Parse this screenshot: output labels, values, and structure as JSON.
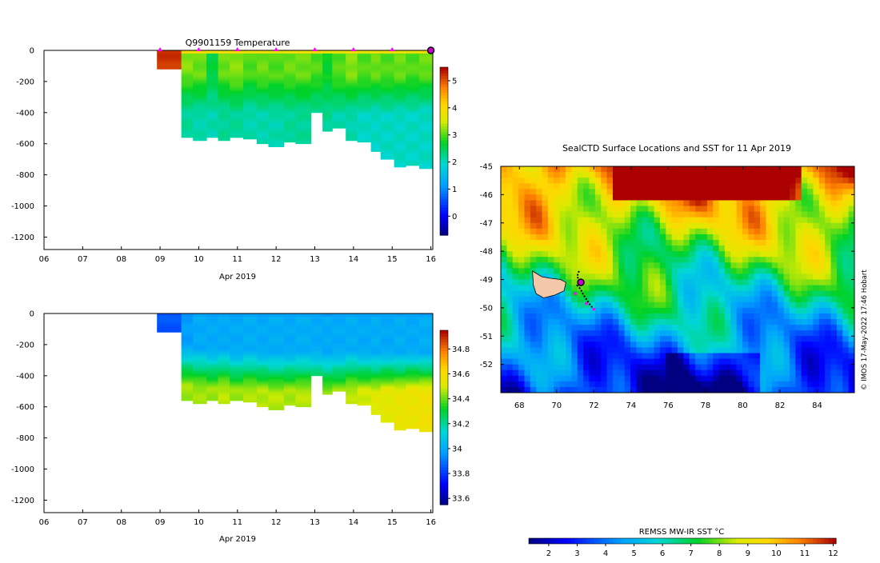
{
  "chart_data": [
    {
      "type": "heatmap",
      "title": "Q9901159  Temperature",
      "xlabel": "Apr 2019",
      "x_ticks": [
        "06",
        "07",
        "08",
        "09",
        "10",
        "11",
        "12",
        "13",
        "14",
        "15",
        "16"
      ],
      "xlim": [
        6,
        16.05
      ],
      "y_ticks": [
        0,
        -200,
        -400,
        -600,
        -800,
        -1000,
        -1200
      ],
      "ylim": [
        -1280,
        0
      ],
      "colorbar": {
        "ticks": [
          0,
          1,
          2,
          3,
          4,
          5
        ],
        "range": [
          -0.7,
          5.5
        ]
      },
      "profile_markers": [
        9,
        10,
        11,
        12,
        13,
        14,
        15,
        16
      ],
      "profiles": [
        {
          "t0": 8.92,
          "t1": 9.55,
          "surface": 5.2,
          "mixed": 5.2,
          "mld": 120,
          "deep": 5.2,
          "depth": 120
        },
        {
          "t0": 9.55,
          "t1": 9.85,
          "surface": 4.0,
          "mixed": 3.2,
          "mld": 130,
          "deep": 2.2,
          "depth": 560
        },
        {
          "t0": 9.85,
          "t1": 10.2,
          "surface": 3.9,
          "mixed": 3.1,
          "mld": 150,
          "deep": 2.1,
          "depth": 580
        },
        {
          "t0": 10.2,
          "t1": 10.5,
          "surface": 3.8,
          "mixed": 2.6,
          "mld": 160,
          "deep": 2.1,
          "depth": 560
        },
        {
          "t0": 10.5,
          "t1": 10.8,
          "surface": 3.9,
          "mixed": 3.1,
          "mld": 140,
          "deep": 2.2,
          "depth": 580
        },
        {
          "t0": 10.8,
          "t1": 11.15,
          "surface": 4.0,
          "mixed": 3.2,
          "mld": 150,
          "deep": 2.2,
          "depth": 560
        },
        {
          "t0": 11.15,
          "t1": 11.5,
          "surface": 3.8,
          "mixed": 3.0,
          "mld": 140,
          "deep": 2.1,
          "depth": 570
        },
        {
          "t0": 11.5,
          "t1": 11.8,
          "surface": 3.9,
          "mixed": 3.1,
          "mld": 150,
          "deep": 2.1,
          "depth": 600
        },
        {
          "t0": 11.8,
          "t1": 12.2,
          "surface": 3.7,
          "mixed": 3.0,
          "mld": 160,
          "deep": 2.1,
          "depth": 620
        },
        {
          "t0": 12.2,
          "t1": 12.5,
          "surface": 3.8,
          "mixed": 3.1,
          "mld": 140,
          "deep": 2.2,
          "depth": 590
        },
        {
          "t0": 12.5,
          "t1": 12.9,
          "surface": 3.9,
          "mixed": 3.1,
          "mld": 150,
          "deep": 2.2,
          "depth": 600
        },
        {
          "t0": 12.9,
          "t1": 13.2,
          "surface": 4.0,
          "mixed": 3.0,
          "mld": 140,
          "deep": 2.2,
          "depth": 400
        },
        {
          "t0": 13.2,
          "t1": 13.45,
          "surface": 3.8,
          "mixed": 2.7,
          "mld": 180,
          "deep": 2.2,
          "depth": 520
        },
        {
          "t0": 13.45,
          "t1": 13.8,
          "surface": 3.7,
          "mixed": 3.0,
          "mld": 160,
          "deep": 2.1,
          "depth": 500
        },
        {
          "t0": 13.8,
          "t1": 14.1,
          "surface": 3.9,
          "mixed": 3.2,
          "mld": 150,
          "deep": 2.1,
          "depth": 580
        },
        {
          "t0": 14.1,
          "t1": 14.45,
          "surface": 3.7,
          "mixed": 3.0,
          "mld": 160,
          "deep": 2.0,
          "depth": 590
        },
        {
          "t0": 14.45,
          "t1": 14.7,
          "surface": 3.8,
          "mixed": 3.1,
          "mld": 150,
          "deep": 2.0,
          "depth": 650
        },
        {
          "t0": 14.7,
          "t1": 15.05,
          "surface": 3.9,
          "mixed": 3.0,
          "mld": 160,
          "deep": 2.0,
          "depth": 700
        },
        {
          "t0": 15.05,
          "t1": 15.35,
          "surface": 3.8,
          "mixed": 3.1,
          "mld": 150,
          "deep": 2.0,
          "depth": 750
        },
        {
          "t0": 15.35,
          "t1": 15.7,
          "surface": 3.7,
          "mixed": 3.0,
          "mld": 150,
          "deep": 2.0,
          "depth": 740
        },
        {
          "t0": 15.7,
          "t1": 16.05,
          "surface": 3.9,
          "mixed": 3.1,
          "mld": 140,
          "deep": 2.0,
          "depth": 760
        }
      ]
    },
    {
      "type": "heatmap",
      "title": "",
      "xlabel": "Apr 2019",
      "x_ticks": [
        "06",
        "07",
        "08",
        "09",
        "10",
        "11",
        "12",
        "13",
        "14",
        "15",
        "16"
      ],
      "xlim": [
        6,
        16.05
      ],
      "y_ticks": [
        0,
        -200,
        -400,
        -600,
        -800,
        -1000,
        -1200
      ],
      "ylim": [
        -1280,
        0
      ],
      "colorbar": {
        "ticks": [
          33.6,
          33.8,
          34,
          34.2,
          34.4,
          34.6,
          34.8
        ],
        "labels": [
          "33.6",
          "33.8",
          "34",
          "34.2",
          "34.4",
          "34.6",
          "34.8"
        ],
        "range": [
          33.55,
          34.95
        ]
      },
      "profiles": [
        {
          "t0": 8.92,
          "t1": 9.55,
          "surface": 33.85,
          "mixed": 33.85,
          "mld": 120,
          "deep": 33.85,
          "depth": 120
        },
        {
          "t0": 9.55,
          "t1": 9.85,
          "surface": 33.95,
          "mixed": 33.97,
          "mld": 200,
          "deep": 34.45,
          "depth": 560
        },
        {
          "t0": 9.85,
          "t1": 10.2,
          "surface": 33.98,
          "mixed": 34.0,
          "mld": 220,
          "deep": 34.45,
          "depth": 580
        },
        {
          "t0": 10.2,
          "t1": 10.5,
          "surface": 33.97,
          "mixed": 34.0,
          "mld": 230,
          "deep": 34.45,
          "depth": 560
        },
        {
          "t0": 10.5,
          "t1": 10.8,
          "surface": 33.98,
          "mixed": 34.0,
          "mld": 220,
          "deep": 34.47,
          "depth": 580
        },
        {
          "t0": 10.8,
          "t1": 11.15,
          "surface": 33.97,
          "mixed": 34.0,
          "mld": 240,
          "deep": 34.45,
          "depth": 560
        },
        {
          "t0": 11.15,
          "t1": 11.5,
          "surface": 33.98,
          "mixed": 34.01,
          "mld": 230,
          "deep": 34.46,
          "depth": 570
        },
        {
          "t0": 11.5,
          "t1": 11.8,
          "surface": 33.97,
          "mixed": 34.0,
          "mld": 240,
          "deep": 34.47,
          "depth": 600
        },
        {
          "t0": 11.8,
          "t1": 12.2,
          "surface": 33.98,
          "mixed": 34.01,
          "mld": 250,
          "deep": 34.47,
          "depth": 620
        },
        {
          "t0": 12.2,
          "t1": 12.5,
          "surface": 33.97,
          "mixed": 34.0,
          "mld": 240,
          "deep": 34.46,
          "depth": 590
        },
        {
          "t0": 12.5,
          "t1": 12.9,
          "surface": 33.98,
          "mixed": 34.01,
          "mld": 240,
          "deep": 34.47,
          "depth": 600
        },
        {
          "t0": 12.9,
          "t1": 13.2,
          "surface": 33.97,
          "mixed": 34.0,
          "mld": 230,
          "deep": 34.4,
          "depth": 400
        },
        {
          "t0": 13.2,
          "t1": 13.45,
          "surface": 33.96,
          "mixed": 34.0,
          "mld": 250,
          "deep": 34.45,
          "depth": 520
        },
        {
          "t0": 13.45,
          "t1": 13.8,
          "surface": 33.97,
          "mixed": 34.0,
          "mld": 240,
          "deep": 34.45,
          "depth": 500
        },
        {
          "t0": 13.8,
          "t1": 14.1,
          "surface": 33.98,
          "mixed": 34.01,
          "mld": 230,
          "deep": 34.47,
          "depth": 580
        },
        {
          "t0": 14.1,
          "t1": 14.45,
          "surface": 33.97,
          "mixed": 34.0,
          "mld": 240,
          "deep": 34.5,
          "depth": 590
        },
        {
          "t0": 14.45,
          "t1": 14.7,
          "surface": 33.98,
          "mixed": 34.01,
          "mld": 250,
          "deep": 34.52,
          "depth": 650
        },
        {
          "t0": 14.7,
          "t1": 15.05,
          "surface": 33.97,
          "mixed": 34.0,
          "mld": 240,
          "deep": 34.53,
          "depth": 700
        },
        {
          "t0": 15.05,
          "t1": 15.35,
          "surface": 33.98,
          "mixed": 34.01,
          "mld": 250,
          "deep": 34.55,
          "depth": 750
        },
        {
          "t0": 15.35,
          "t1": 15.7,
          "surface": 33.97,
          "mixed": 34.0,
          "mld": 240,
          "deep": 34.56,
          "depth": 740
        },
        {
          "t0": 15.7,
          "t1": 16.05,
          "surface": 33.98,
          "mixed": 34.01,
          "mld": 250,
          "deep": 34.58,
          "depth": 760
        }
      ]
    },
    {
      "type": "heatmap",
      "title": "SealCTD Surface Locations and SST for 11 Apr 2019",
      "xlabel": "",
      "ylabel": "",
      "x_ticks": [
        68,
        70,
        72,
        74,
        76,
        78,
        80,
        82,
        84
      ],
      "xlim": [
        67,
        86
      ],
      "y_ticks": [
        -45,
        -46,
        -47,
        -48,
        -49,
        -50,
        -51,
        -52
      ],
      "ylim": [
        -53,
        -45
      ],
      "colorbar": {
        "label": "REMSS MW-IR SST °C",
        "ticks": [
          2,
          3,
          4,
          5,
          6,
          7,
          8,
          9,
          10,
          11,
          12
        ],
        "range": [
          1.3,
          12.1
        ]
      },
      "credit": "© IMOS 17-May-2022 17:46 Hobart",
      "track": [
        [
          71.2,
          -48.7
        ],
        [
          71.1,
          -48.9
        ],
        [
          71.25,
          -49.05
        ],
        [
          71.1,
          -49.2
        ],
        [
          71.3,
          -49.35
        ],
        [
          71.4,
          -49.5
        ],
        [
          71.6,
          -49.7
        ],
        [
          71.8,
          -49.9
        ],
        [
          72.0,
          -50.05
        ]
      ],
      "track_markers": [
        [
          71.3,
          -49.1
        ],
        [
          71.6,
          -49.85
        ],
        [
          71.0,
          -49.5
        ],
        [
          72.0,
          -50.05
        ]
      ],
      "current_location": [
        71.3,
        -49.1
      ]
    }
  ]
}
